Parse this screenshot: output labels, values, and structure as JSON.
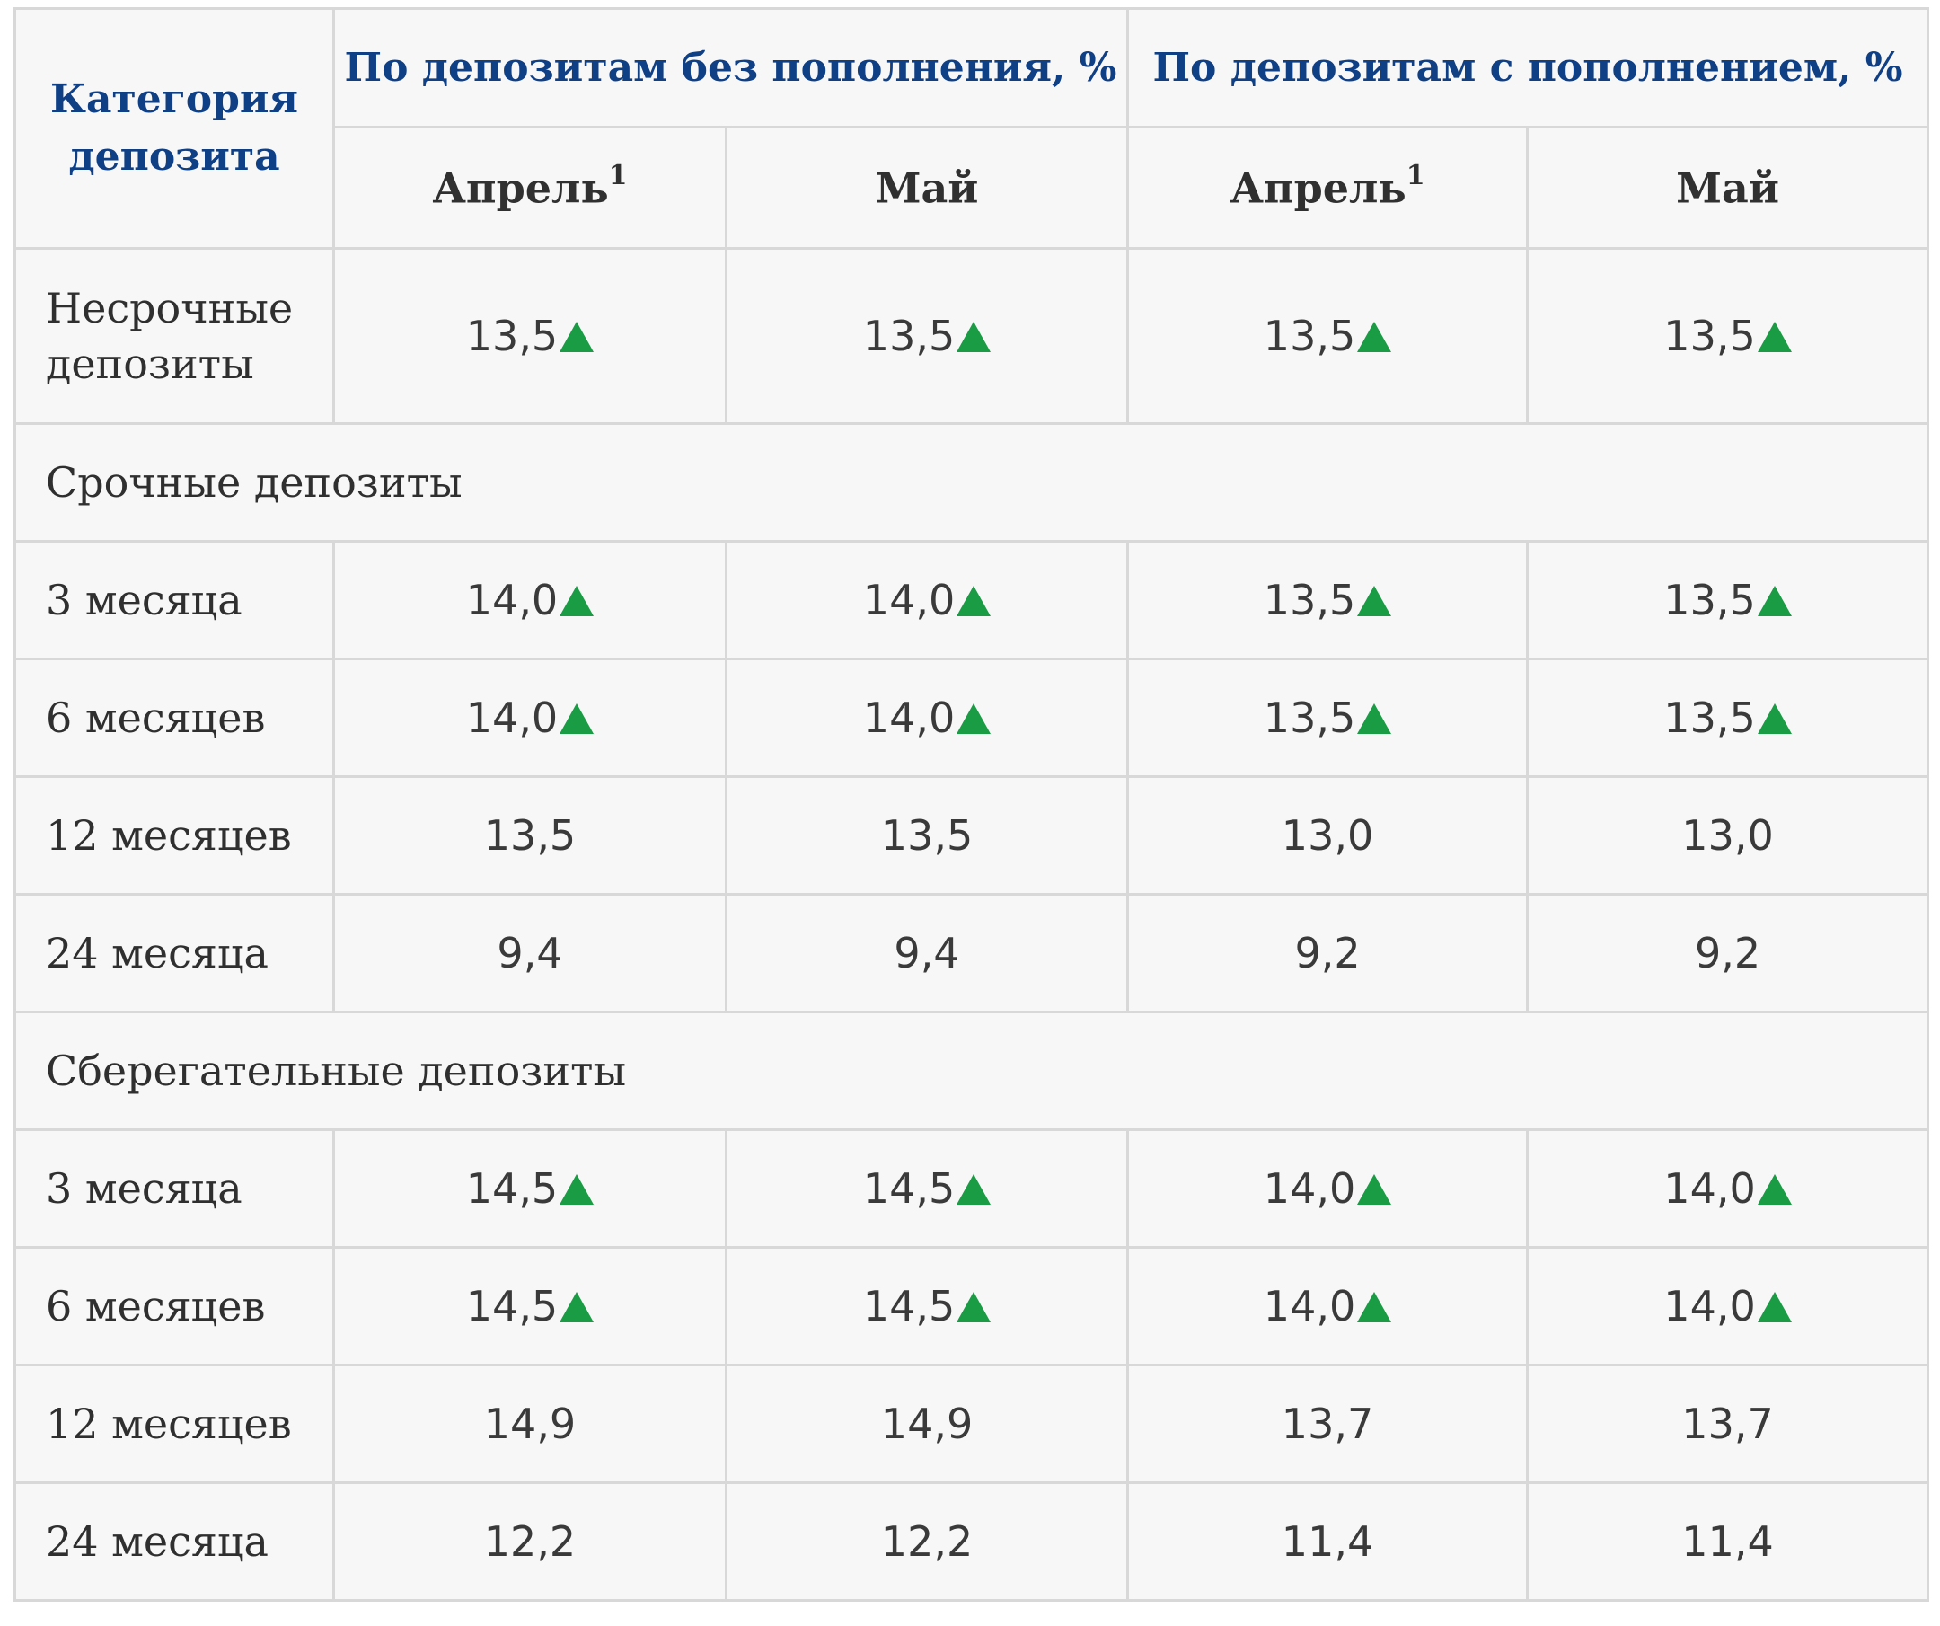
{
  "table": {
    "category_header": "Категория депозита",
    "group_headers": [
      "По депозитам без пополнения, %",
      "По депозитам с пополнением, %"
    ],
    "month_headers": [
      {
        "label": "Апрель",
        "sup": "1"
      },
      {
        "label": "Май",
        "sup": ""
      },
      {
        "label": "Апрель",
        "sup": "1"
      },
      {
        "label": "Май",
        "sup": ""
      }
    ],
    "nonterm_row": {
      "label": "Несрочные депозиты",
      "values": [
        "13,5",
        "13,5",
        "13,5",
        "13,5"
      ],
      "up": [
        true,
        true,
        true,
        true
      ]
    },
    "sections": [
      {
        "title": "Срочные депозиты",
        "rows": [
          {
            "label": "3 месяца",
            "values": [
              "14,0",
              "14,0",
              "13,5",
              "13,5"
            ],
            "up": [
              true,
              true,
              true,
              true
            ]
          },
          {
            "label": "6 месяцев",
            "values": [
              "14,0",
              "14,0",
              "13,5",
              "13,5"
            ],
            "up": [
              true,
              true,
              true,
              true
            ]
          },
          {
            "label": "12 месяцев",
            "values": [
              "13,5",
              "13,5",
              "13,0",
              "13,0"
            ],
            "up": [
              false,
              false,
              false,
              false
            ]
          },
          {
            "label": "24 месяца",
            "values": [
              "9,4",
              "9,4",
              "9,2",
              "9,2"
            ],
            "up": [
              false,
              false,
              false,
              false
            ]
          }
        ]
      },
      {
        "title": "Сберегательные депозиты",
        "rows": [
          {
            "label": "3 месяца",
            "values": [
              "14,5",
              "14,5",
              "14,0",
              "14,0"
            ],
            "up": [
              true,
              true,
              true,
              true
            ]
          },
          {
            "label": "6 месяцев",
            "values": [
              "14,5",
              "14,5",
              "14,0",
              "14,0"
            ],
            "up": [
              true,
              true,
              true,
              true
            ]
          },
          {
            "label": "12 месяцев",
            "values": [
              "14,9",
              "14,9",
              "13,7",
              "13,7"
            ],
            "up": [
              false,
              false,
              false,
              false
            ]
          },
          {
            "label": "24 месяца",
            "values": [
              "12,2",
              "12,2",
              "11,4",
              "11,4"
            ],
            "up": [
              false,
              false,
              false,
              false
            ]
          }
        ]
      }
    ],
    "colors": {
      "header_blue": "#0f3f85",
      "up_arrow_green": "#1a9c45",
      "border": "#d8d8d8",
      "cell_bg": "#f7f7f7"
    },
    "up_icon": "green-triangle-up-icon"
  }
}
